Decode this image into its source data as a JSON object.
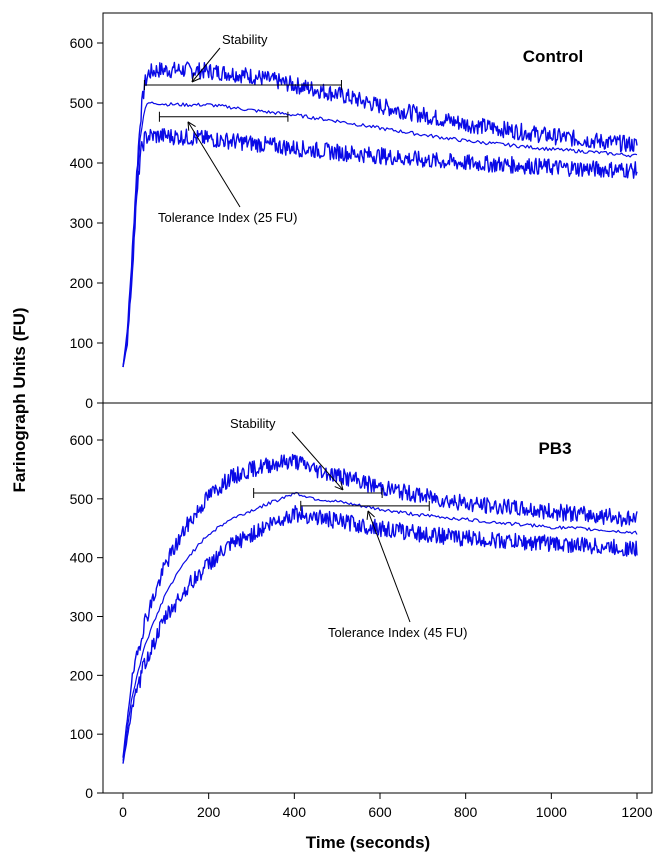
{
  "chart_data": [
    {
      "type": "line",
      "panel": "top",
      "title": "Control",
      "xlabel": "Time (seconds)",
      "ylabel": "Farinograph Units (FU)",
      "xlim": [
        0,
        1200
      ],
      "ylim": [
        0,
        650
      ],
      "x_ticks": [
        0,
        200,
        400,
        600,
        800,
        1000,
        1200
      ],
      "y_ticks": [
        0,
        100,
        200,
        300,
        400,
        500,
        600
      ],
      "x": [
        0,
        10,
        20,
        30,
        40,
        50,
        60,
        80,
        100,
        150,
        200,
        250,
        300,
        400,
        500,
        600,
        700,
        800,
        900,
        1000,
        1100,
        1200
      ],
      "series": [
        {
          "role": "upper",
          "values": [
            60,
            120,
            230,
            360,
            470,
            530,
            550,
            555,
            555,
            555,
            553,
            550,
            545,
            530,
            515,
            495,
            480,
            465,
            455,
            445,
            437,
            430
          ]
        },
        {
          "role": "mean",
          "values": [
            60,
            110,
            220,
            340,
            440,
            490,
            500,
            500,
            498,
            497,
            497,
            493,
            488,
            480,
            470,
            458,
            447,
            437,
            430,
            423,
            418,
            412
          ]
        },
        {
          "role": "lower",
          "values": [
            60,
            100,
            200,
            320,
            410,
            440,
            445,
            445,
            445,
            443,
            440,
            437,
            433,
            425,
            418,
            412,
            405,
            400,
            397,
            393,
            390,
            388
          ]
        }
      ],
      "annotations": [
        {
          "label": "Stability",
          "kind": "bracket",
          "x_start": 50,
          "x_end": 510,
          "y": 530
        },
        {
          "label": "Tolerance Index (25 FU)",
          "kind": "bracket",
          "x_start": 85,
          "x_end": 385,
          "y": 477
        }
      ],
      "color": "#0a0ae6"
    },
    {
      "type": "line",
      "panel": "bottom",
      "title": "PB3",
      "xlabel": "Time (seconds)",
      "ylabel": "Farinograph Units (FU)",
      "xlim": [
        0,
        1200
      ],
      "ylim": [
        0,
        650
      ],
      "x_ticks": [
        0,
        200,
        400,
        600,
        800,
        1000,
        1200
      ],
      "x_tick_labels": [
        "0",
        "200",
        "400",
        "600",
        "800",
        "1000",
        "1200"
      ],
      "y_ticks": [
        0,
        100,
        200,
        300,
        400,
        500,
        600
      ],
      "x": [
        0,
        20,
        50,
        100,
        150,
        200,
        250,
        300,
        350,
        400,
        450,
        500,
        600,
        700,
        800,
        900,
        1000,
        1100,
        1200
      ],
      "series": [
        {
          "role": "upper",
          "values": [
            60,
            190,
            290,
            390,
            455,
            505,
            535,
            550,
            560,
            565,
            550,
            540,
            520,
            505,
            492,
            485,
            478,
            472,
            465
          ]
        },
        {
          "role": "mean",
          "values": [
            55,
            160,
            250,
            340,
            400,
            440,
            465,
            480,
            495,
            510,
            500,
            495,
            482,
            472,
            465,
            458,
            452,
            448,
            442
          ]
        },
        {
          "role": "lower",
          "values": [
            50,
            140,
            220,
            300,
            350,
            390,
            420,
            440,
            460,
            475,
            470,
            462,
            450,
            440,
            433,
            428,
            424,
            420,
            415
          ]
        }
      ],
      "annotations": [
        {
          "label": "Stability",
          "kind": "bracket",
          "x_start": 305,
          "x_end": 605,
          "y": 510
        },
        {
          "label": "Tolerance Index (45 FU)",
          "kind": "bracket",
          "x_start": 415,
          "x_end": 715,
          "y": 488
        }
      ],
      "color": "#0a0ae6"
    }
  ]
}
